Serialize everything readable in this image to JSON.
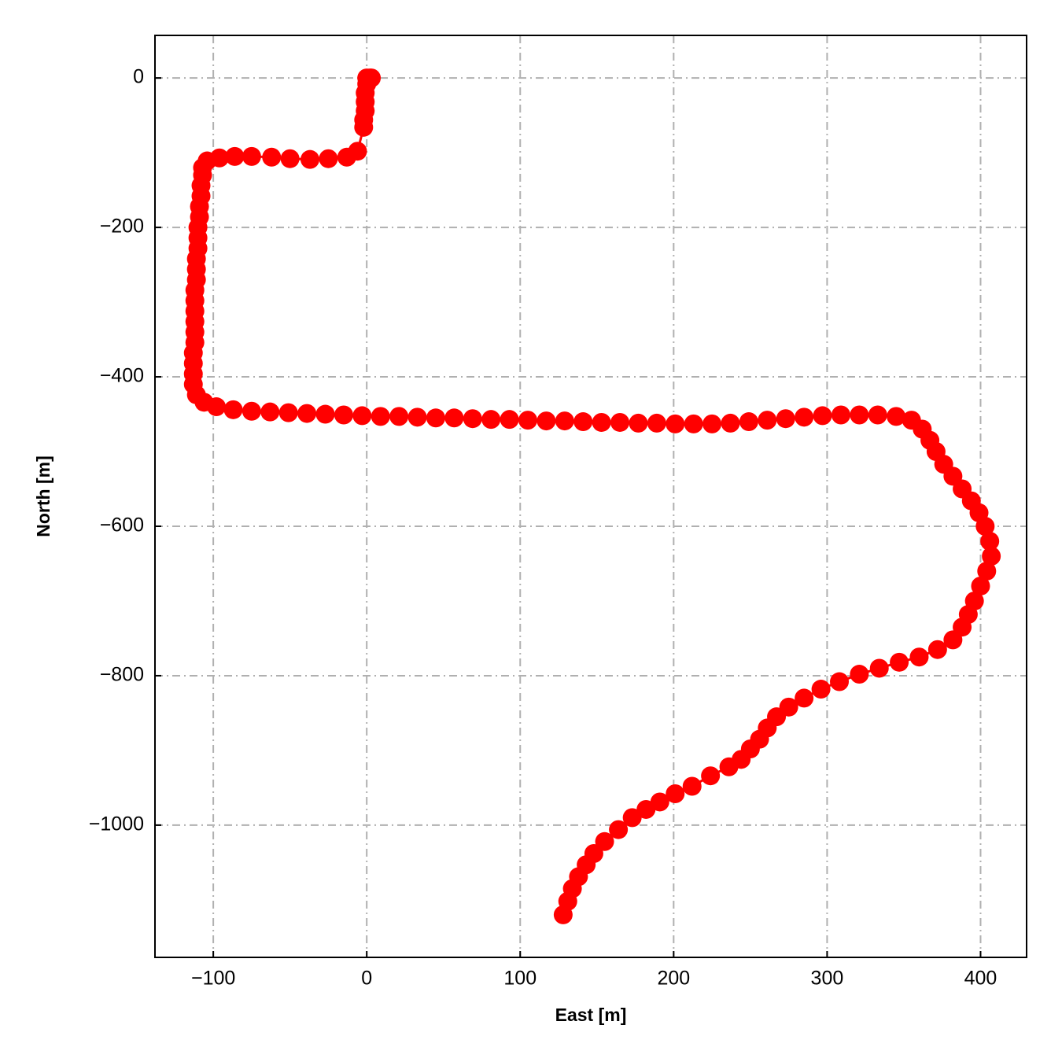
{
  "chart_data": {
    "type": "line",
    "xlabel": "East [m]",
    "ylabel": "North [m]",
    "color": "#ff0000",
    "markers": true,
    "grid": true,
    "xlim": [
      -138,
      430
    ],
    "ylim": [
      -1177,
      57
    ],
    "xticks": [
      {
        "value": -100,
        "label": "−100"
      },
      0,
      100,
      200,
      300,
      400
    ],
    "yticks": [
      {
        "value": -1000,
        "label": "−1000"
      },
      {
        "value": -800,
        "label": "−800"
      },
      {
        "value": -600,
        "label": "−600"
      },
      {
        "value": -400,
        "label": "−400"
      },
      {
        "value": -200,
        "label": "−200"
      },
      0
    ],
    "x": [
      0,
      2,
      3,
      0,
      -1,
      -1,
      -1,
      -2,
      -2,
      -6,
      -13,
      -25,
      -37,
      -50,
      -62,
      -75,
      -86,
      -96,
      -104,
      -107,
      -107,
      -108,
      -108,
      -109,
      -109,
      -110,
      -110,
      -110,
      -111,
      -111,
      -111,
      -112,
      -112,
      -112,
      -112,
      -112,
      -112,
      -113,
      -113,
      -113,
      -113,
      -111,
      -106,
      -98,
      -87,
      -75,
      -63,
      -51,
      -39,
      -27,
      -15,
      -3,
      9,
      21,
      33,
      45,
      57,
      69,
      81,
      93,
      105,
      117,
      129,
      141,
      153,
      165,
      177,
      189,
      201,
      213,
      225,
      237,
      249,
      261,
      273,
      285,
      297,
      309,
      321,
      333,
      345,
      355,
      362,
      367,
      371,
      376,
      382,
      388,
      394,
      399,
      403,
      406,
      407,
      404,
      400,
      396,
      392,
      388,
      382,
      372,
      360,
      347,
      334,
      321,
      308,
      296,
      285,
      275,
      267,
      261,
      256,
      250,
      244,
      236,
      224,
      212,
      201,
      191,
      182,
      173,
      164,
      155,
      148,
      143,
      138,
      134,
      131,
      128
    ],
    "y": [
      0,
      0,
      0,
      -8,
      -20,
      -32,
      -44,
      -56,
      -66,
      -98,
      -106,
      -108,
      -109,
      -108,
      -106,
      -105,
      -105,
      -107,
      -111,
      -120,
      -130,
      -144,
      -158,
      -172,
      -186,
      -200,
      -214,
      -228,
      -242,
      -256,
      -270,
      -284,
      -298,
      -312,
      -326,
      -340,
      -354,
      -368,
      -382,
      -396,
      -410,
      -424,
      -434,
      -440,
      -444,
      -446,
      -447,
      -448,
      -449,
      -450,
      -451,
      -452,
      -453,
      -453,
      -454,
      -455,
      -455,
      -456,
      -457,
      -457,
      -458,
      -459,
      -459,
      -460,
      -461,
      -461,
      -462,
      -462,
      -463,
      -463,
      -463,
      -462,
      -460,
      -458,
      -456,
      -454,
      -452,
      -451,
      -451,
      -451,
      -453,
      -458,
      -470,
      -485,
      -500,
      -517,
      -533,
      -550,
      -566,
      -582,
      -600,
      -620,
      -640,
      -660,
      -680,
      -700,
      -718,
      -735,
      -752,
      -765,
      -775,
      -782,
      -790,
      -798,
      -808,
      -818,
      -830,
      -842,
      -855,
      -870,
      -885,
      -898,
      -912,
      -922,
      -934,
      -948,
      -958,
      -969,
      -979,
      -990,
      -1006,
      -1022,
      -1038,
      -1053,
      -1069,
      -1085,
      -1102,
      -1120
    ]
  }
}
